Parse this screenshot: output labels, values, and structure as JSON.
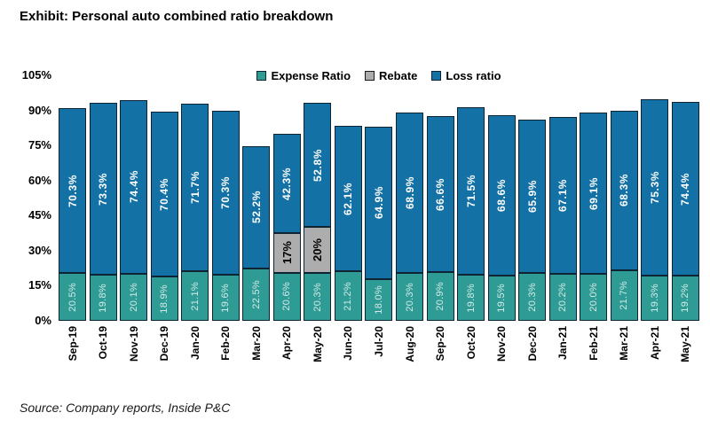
{
  "title": "Exhibit: Personal auto combined ratio breakdown",
  "source": "Source: Company reports, Inside P&C",
  "legend": [
    {
      "label": "Expense Ratio",
      "color": "#2e9b94",
      "border": "#0e2433"
    },
    {
      "label": "Rebate",
      "color": "#adadad",
      "border": "#1a1a1a"
    },
    {
      "label": "Loss ratio",
      "color": "#1371a6",
      "border": "#0e2433"
    }
  ],
  "colors": {
    "expense_fill": "#2e9b94",
    "rebate_fill": "#adadad",
    "loss_fill": "#1371a6",
    "segment_border": "#0e2433",
    "expense_label": "#d2ebe8",
    "loss_label": "#ffffff",
    "rebate_label": "#000000",
    "background": "#ffffff"
  },
  "chart_data": {
    "type": "bar",
    "stacked": true,
    "title": "Exhibit: Personal auto combined ratio breakdown",
    "xlabel": "",
    "ylabel": "",
    "ylim": [
      0,
      105
    ],
    "yticks": [
      "105%",
      "90%",
      "75%",
      "60%",
      "45%",
      "30%",
      "15%",
      "0%"
    ],
    "grid": false,
    "legend_position": "top-center",
    "categories": [
      "Sep-19",
      "Oct-19",
      "Nov-19",
      "Dec-19",
      "Jan-20",
      "Feb-20",
      "Mar-20",
      "Apr-20",
      "May-20",
      "Jun-20",
      "Jul-20",
      "Aug-20",
      "Sep-20",
      "Oct-20",
      "Nov-20",
      "Dec-20",
      "Jan-21",
      "Feb-21",
      "Mar-21",
      "Apr-21",
      "May-21"
    ],
    "series": [
      {
        "key": "expense",
        "name": "Expense Ratio",
        "values": [
          20.5,
          19.8,
          20.1,
          18.9,
          21.1,
          19.6,
          22.5,
          20.6,
          20.3,
          21.2,
          18.0,
          20.3,
          20.9,
          19.8,
          19.5,
          20.3,
          20.2,
          20.0,
          21.7,
          19.3,
          19.2
        ],
        "display": [
          "20.5%",
          "19.8%",
          "20.1%",
          "18.9%",
          "21.1%",
          "19.6%",
          "22.5%",
          "20.6%",
          "20.3%",
          "21.2%",
          "18.0%",
          "20.3%",
          "20.9%",
          "19.8%",
          "19.5%",
          "20.3%",
          "20.2%",
          "20.0%",
          "21.7%",
          "19.3%",
          "19.2%"
        ]
      },
      {
        "key": "rebate",
        "name": "Rebate",
        "values": [
          0,
          0,
          0,
          0,
          0,
          0,
          0,
          17,
          20,
          0,
          0,
          0,
          0,
          0,
          0,
          0,
          0,
          0,
          0,
          0,
          0
        ],
        "display": [
          "",
          "",
          "",
          "",
          "",
          "",
          "",
          "17%",
          "20%",
          "",
          "",
          "",
          "",
          "",
          "",
          "",
          "",
          "",
          "",
          "",
          ""
        ]
      },
      {
        "key": "loss",
        "name": "Loss ratio",
        "values": [
          70.3,
          73.3,
          74.4,
          70.4,
          71.7,
          70.3,
          52.2,
          42.3,
          52.8,
          62.1,
          64.9,
          68.9,
          66.6,
          71.5,
          68.6,
          65.9,
          67.1,
          69.1,
          68.3,
          75.3,
          74.4
        ],
        "display": [
          "70.3%",
          "73.3%",
          "74.4%",
          "70.4%",
          "71.7%",
          "70.3%",
          "52.2%",
          "42.3%",
          "52.8%",
          "62.1%",
          "64.9%",
          "68.9%",
          "66.6%",
          "71.5%",
          "68.6%",
          "65.9%",
          "67.1%",
          "69.1%",
          "68.3%",
          "75.3%",
          "74.4%"
        ]
      }
    ]
  }
}
